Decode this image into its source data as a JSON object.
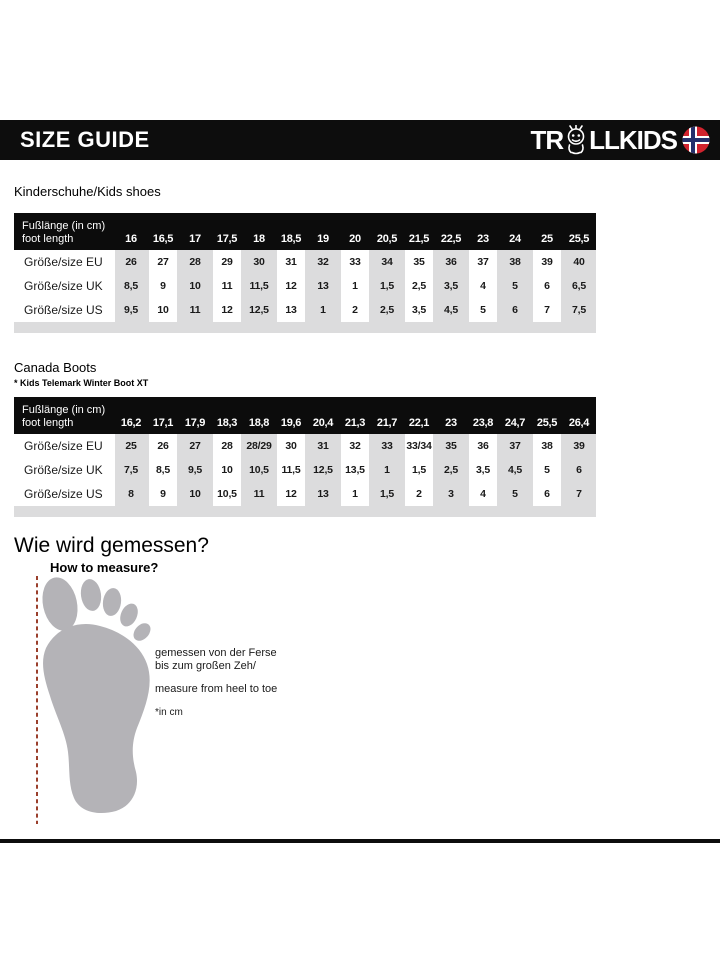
{
  "page": {
    "title": "SIZE GUIDE",
    "brand": {
      "part1": "TR",
      "part2": "LLKIDS",
      "troll_icon": "troll-o-icon",
      "flag_icon": "norway-flag-icon"
    }
  },
  "kids_shoes": {
    "heading": "Kinderschuhe/Kids shoes"
  },
  "canada": {
    "heading": "Canada Boots",
    "subheading": "* Kids Telemark Winter Boot XT"
  },
  "measure": {
    "heading_de": "Wie wird gemessen?",
    "heading_en": "How to measure?",
    "line1": "gemessen von der Ferse",
    "line2": "bis zum großen Zeh/",
    "line3": "measure from heel to toe",
    "line4": "*in cm"
  },
  "tables": [
    {
      "name": "kids-shoes-size-table",
      "header_label_line1": "Fußlänge (in cm)",
      "header_label_line2": "foot length",
      "foot_lengths": [
        "16",
        "16,5",
        "17",
        "17,5",
        "18",
        "18,5",
        "19",
        "20",
        "20,5",
        "21,5",
        "22,5",
        "23",
        "24",
        "25",
        "25,5"
      ],
      "rows": [
        {
          "label": "Größe/size EU",
          "values": [
            "26",
            "27",
            "28",
            "29",
            "30",
            "31",
            "32",
            "33",
            "34",
            "35",
            "36",
            "37",
            "38",
            "39",
            "40"
          ]
        },
        {
          "label": "Größe/size UK",
          "values": [
            "8,5",
            "9",
            "10",
            "11",
            "11,5",
            "12",
            "13",
            "1",
            "1,5",
            "2,5",
            "3,5",
            "4",
            "5",
            "6",
            "6,5"
          ]
        },
        {
          "label": "Größe/size US",
          "values": [
            "9,5",
            "10",
            "11",
            "12",
            "12,5",
            "13",
            "1",
            "2",
            "2,5",
            "3,5",
            "4,5",
            "5",
            "6",
            "7",
            "7,5"
          ]
        }
      ]
    },
    {
      "name": "canada-boots-size-table",
      "header_label_line1": "Fußlänge (in cm)",
      "header_label_line2": "foot length",
      "foot_lengths": [
        "16,2",
        "17,1",
        "17,9",
        "18,3",
        "18,8",
        "19,6",
        "20,4",
        "21,3",
        "21,7",
        "22,1",
        "23",
        "23,8",
        "24,7",
        "25,5",
        "26,4"
      ],
      "rows": [
        {
          "label": "Größe/size EU",
          "values": [
            "25",
            "26",
            "27",
            "28",
            "28/29",
            "30",
            "31",
            "32",
            "33",
            "33/34",
            "35",
            "36",
            "37",
            "38",
            "39"
          ]
        },
        {
          "label": "Größe/size UK",
          "values": [
            "7,5",
            "8,5",
            "9,5",
            "10",
            "10,5",
            "11,5",
            "12,5",
            "13,5",
            "1",
            "1,5",
            "2,5",
            "3,5",
            "4,5",
            "5",
            "6"
          ]
        },
        {
          "label": "Größe/size US",
          "values": [
            "8",
            "9",
            "10",
            "10,5",
            "11",
            "12",
            "13",
            "1",
            "1,5",
            "2",
            "3",
            "4",
            "5",
            "6",
            "7"
          ]
        }
      ]
    }
  ],
  "colors": {
    "banner_black": "#0d0d0d",
    "table_header_black": "#0c0c0c",
    "table_stripe_gray": "#dcdcdd",
    "foot_gray": "#b4b3b7",
    "dashed_line_red": "#9a3f2c",
    "flag_red": "#d1232e",
    "flag_blue": "#25306b"
  }
}
